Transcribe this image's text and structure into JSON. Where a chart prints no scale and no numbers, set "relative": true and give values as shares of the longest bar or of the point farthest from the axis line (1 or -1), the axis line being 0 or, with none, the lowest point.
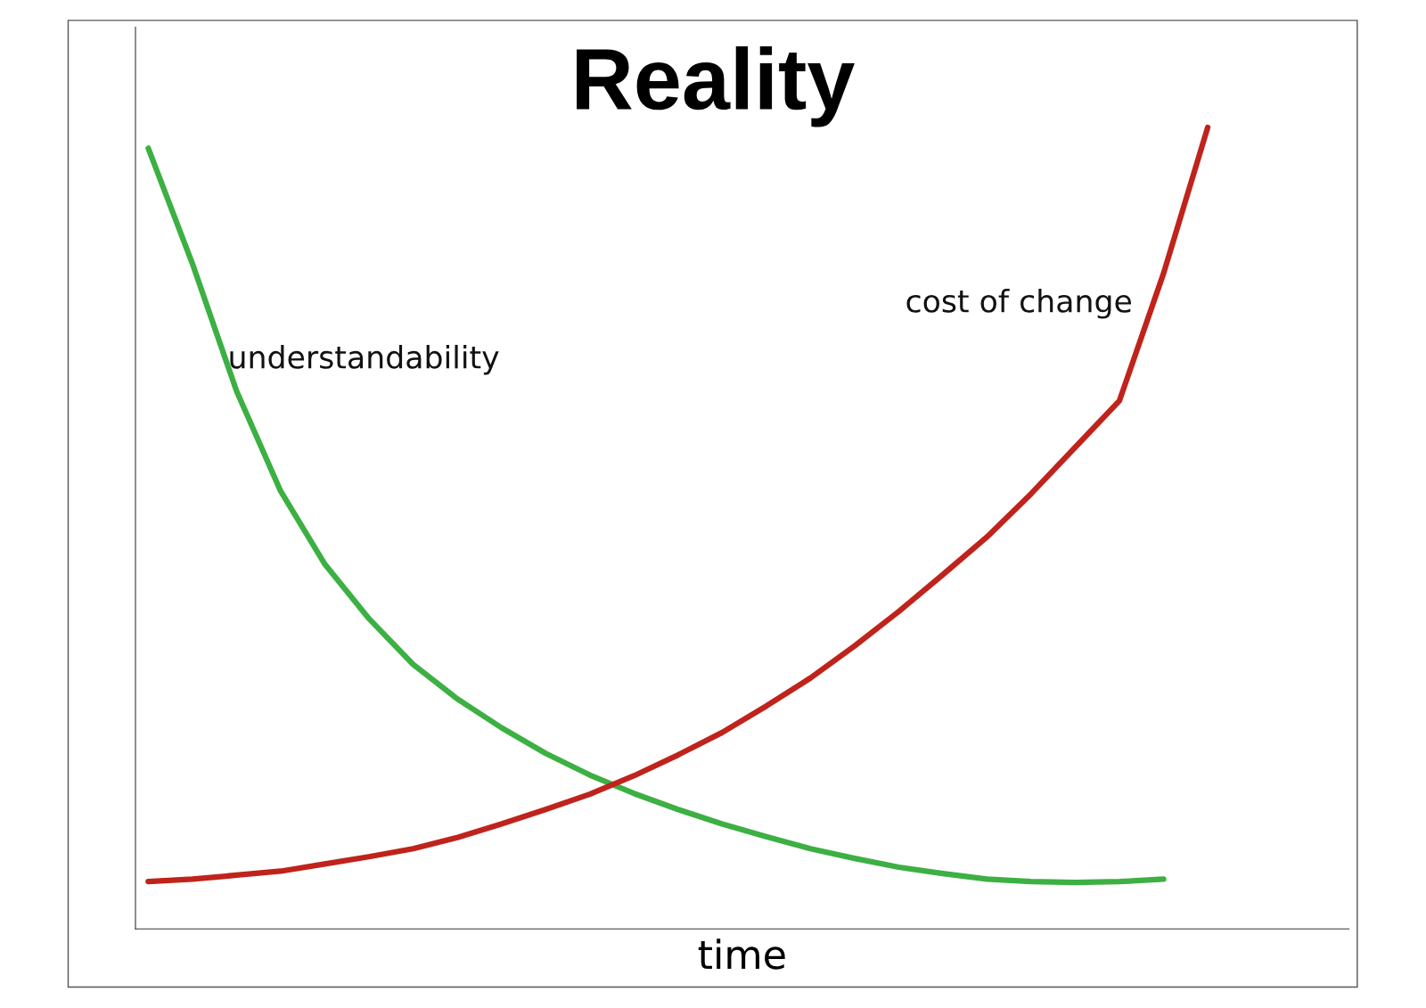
{
  "chart_data": {
    "type": "line",
    "title": "Reality",
    "xlabel": "time",
    "relative": true,
    "legend": false,
    "marker": "none",
    "line_style": "solid",
    "categories": [
      null,
      null,
      null,
      null,
      null,
      null,
      null,
      null,
      null,
      null,
      null,
      null,
      null,
      null,
      null,
      null,
      null,
      null,
      null,
      null,
      null,
      null,
      null,
      null,
      null
    ],
    "series": [
      {
        "name": "understandability",
        "color": "#3cb043",
        "values": [
          0.974,
          0.83,
          0.671,
          0.546,
          0.455,
          0.387,
          0.33,
          0.287,
          0.251,
          0.219,
          0.192,
          0.169,
          0.149,
          0.131,
          0.115,
          0.1,
          0.088,
          0.077,
          0.069,
          0.062,
          0.059,
          0.058,
          0.059,
          0.062,
          null
        ]
      },
      {
        "name": "cost of change",
        "color": "#c0231b",
        "values": [
          0.059,
          0.062,
          0.067,
          0.072,
          0.081,
          0.09,
          0.1,
          0.114,
          0.131,
          0.149,
          0.168,
          0.191,
          0.217,
          0.245,
          0.278,
          0.313,
          0.353,
          0.396,
          0.442,
          0.489,
          0.543,
          0.601,
          0.659,
          0.818,
          1.0
        ]
      }
    ]
  }
}
